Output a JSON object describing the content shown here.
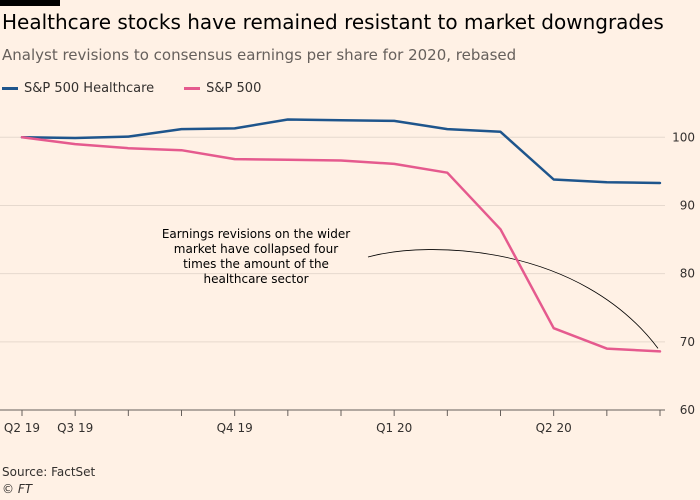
{
  "header": {
    "title": "Healthcare stocks have remained resistant to market downgrades",
    "subtitle": "Analyst revisions to consensus earnings per share for 2020, rebased"
  },
  "footer": {
    "source": "Source: FactSet",
    "credit": "© FT"
  },
  "chart_data": {
    "type": "line",
    "title": "Healthcare stocks have remained resistant to market downgrades",
    "subtitle": "Analyst revisions to consensus earnings per share for 2020, rebased",
    "xlabel": "",
    "ylabel": "",
    "x_ticks": [
      "Q2 19",
      "Q3 19",
      "Q4 19",
      "Q1 20",
      "Q2 20"
    ],
    "y_ticks": [
      60,
      70,
      80,
      90,
      100
    ],
    "ylim": [
      60,
      104
    ],
    "y_axis_position": "right",
    "grid": true,
    "legend_position": "top-left",
    "series": [
      {
        "name": "S&P 500 Healthcare",
        "color": "#1e558c",
        "values": [
          100.0,
          99.9,
          100.1,
          101.2,
          101.3,
          102.6,
          102.5,
          102.4,
          101.2,
          100.8,
          93.8,
          93.4,
          93.3
        ]
      },
      {
        "name": "S&P 500",
        "color": "#e55a8e",
        "values": [
          100.0,
          99.0,
          98.4,
          98.1,
          96.8,
          96.7,
          96.6,
          96.1,
          94.8,
          86.5,
          72.0,
          69.0,
          68.6
        ]
      }
    ],
    "annotation": {
      "lines": [
        "Earnings revisions on the wider",
        "market have collapsed four",
        "times the amount of the",
        "healthcare sector"
      ]
    }
  }
}
